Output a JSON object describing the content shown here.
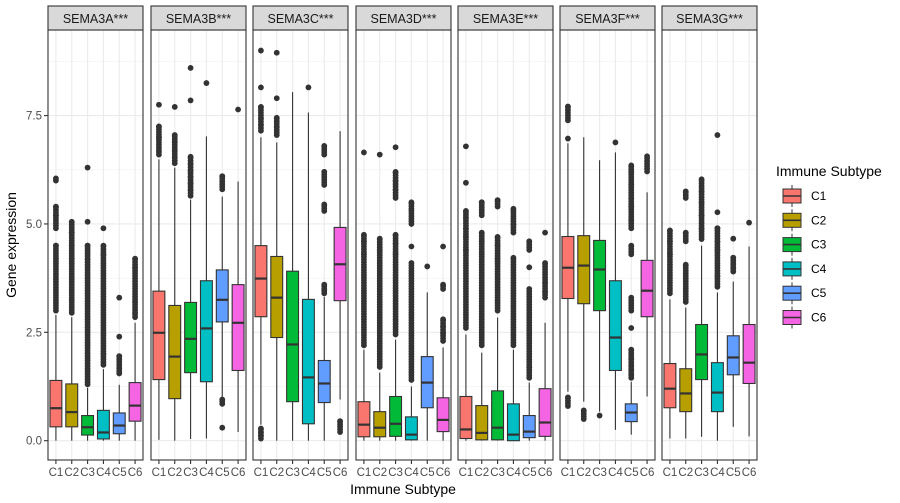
{
  "chart_data": {
    "type": "box",
    "xlabel": "Immune Subtype",
    "ylabel": "Gene expression",
    "ylim": [
      -0.45,
      9.47
    ],
    "yticks": [
      0.0,
      2.5,
      5.0,
      7.5
    ],
    "ytick_labels": [
      "0.0",
      "2.5",
      "5.0",
      "7.5"
    ],
    "grid": true,
    "legend": {
      "title": "Immune Subtype",
      "position": "right",
      "entries": [
        "C1",
        "C2",
        "C3",
        "C4",
        "C5",
        "C6"
      ]
    },
    "categories": [
      "C1",
      "C2",
      "C3",
      "C4",
      "C5",
      "C6"
    ],
    "colors": {
      "C1": "#F8766D",
      "C2": "#B79F00",
      "C3": "#00BA38",
      "C4": "#00BFC4",
      "C5": "#619CFF",
      "C6": "#F564E3"
    },
    "facets": [
      {
        "label": "SEMA3A***",
        "boxes": [
          {
            "group": "C1",
            "low": 0.0,
            "q1": 0.32,
            "median": 0.75,
            "q3": 1.39,
            "high": 2.9,
            "outliers": [
              3.0,
              3.3,
              3.6,
              3.9,
              4.2,
              4.5,
              4.9,
              5.2,
              5.4,
              6.0,
              6.05
            ]
          },
          {
            "group": "C2",
            "low": 0.0,
            "q1": 0.32,
            "median": 0.66,
            "q3": 1.31,
            "high": 2.85,
            "outliers": [
              2.95,
              3.3,
              3.6,
              3.9,
              4.2,
              4.5,
              4.8,
              5.05
            ]
          },
          {
            "group": "C3",
            "low": 0.0,
            "q1": 0.13,
            "median": 0.31,
            "q3": 0.58,
            "high": 1.22,
            "outliers": [
              1.3,
              1.6,
              1.9,
              2.2,
              2.5,
              2.8,
              3.1,
              3.4,
              3.7,
              4.0,
              4.2,
              4.5,
              5.05,
              6.3
            ]
          },
          {
            "group": "C4",
            "low": 0.0,
            "q1": 0.04,
            "median": 0.19,
            "q3": 0.7,
            "high": 1.65,
            "outliers": [
              1.75,
              2.0,
              2.3,
              2.6,
              2.9,
              3.2,
              3.5,
              3.8,
              4.1,
              4.3,
              4.5,
              4.9
            ]
          },
          {
            "group": "C5",
            "low": 0.0,
            "q1": 0.16,
            "median": 0.35,
            "q3": 0.64,
            "high": 1.29,
            "outliers": [
              1.55,
              1.6,
              1.7,
              1.95,
              2.4,
              3.3
            ]
          },
          {
            "group": "C6",
            "low": 0.0,
            "q1": 0.45,
            "median": 0.81,
            "q3": 1.34,
            "high": 2.72,
            "outliers": [
              2.85,
              2.95,
              3.2,
              3.5,
              3.8,
              4.0,
              4.2
            ]
          }
        ]
      },
      {
        "label": "SEMA3B***",
        "boxes": [
          {
            "group": "C1",
            "low": 0.02,
            "q1": 1.41,
            "median": 2.49,
            "q3": 3.45,
            "high": 6.49,
            "outliers": [
              6.6,
              6.7,
              7.0,
              7.25,
              7.75
            ]
          },
          {
            "group": "C2",
            "low": 0.0,
            "q1": 0.97,
            "median": 1.94,
            "q3": 3.12,
            "high": 6.3,
            "outliers": [
              6.4,
              6.55,
              6.7,
              6.9,
              7.05,
              7.7
            ]
          },
          {
            "group": "C3",
            "low": 0.04,
            "q1": 1.57,
            "median": 2.35,
            "q3": 3.19,
            "high": 5.56,
            "outliers": [
              5.65,
              5.8,
              5.95,
              6.1,
              6.25,
              6.4,
              6.55,
              7.85,
              8.6
            ]
          },
          {
            "group": "C4",
            "low": 0.05,
            "q1": 1.36,
            "median": 2.59,
            "q3": 3.69,
            "high": 7.02,
            "outliers": [
              8.25
            ]
          },
          {
            "group": "C5",
            "low": 1.0,
            "q1": 2.74,
            "median": 3.25,
            "q3": 3.94,
            "high": 5.63,
            "outliers": [
              0.3,
              0.85,
              0.95,
              5.8,
              6.1
            ]
          },
          {
            "group": "C6",
            "low": 0.2,
            "q1": 1.62,
            "median": 2.72,
            "q3": 3.6,
            "high": 5.98,
            "outliers": [
              7.64
            ]
          }
        ]
      },
      {
        "label": "SEMA3C***",
        "boxes": [
          {
            "group": "C1",
            "low": 0.37,
            "q1": 2.86,
            "median": 3.74,
            "q3": 4.5,
            "high": 7.0,
            "outliers": [
              0.05,
              0.12,
              0.2,
              0.28,
              7.15,
              7.3,
              7.45,
              7.7,
              8.15,
              9.0
            ]
          },
          {
            "group": "C2",
            "low": 0.0,
            "q1": 2.38,
            "median": 3.3,
            "q3": 4.25,
            "high": 6.88,
            "outliers": [
              7.05,
              7.25,
              7.45,
              7.9,
              8.95
            ]
          },
          {
            "group": "C3",
            "low": 0.0,
            "q1": 0.9,
            "median": 2.22,
            "q3": 3.91,
            "high": 8.04,
            "outliers": []
          },
          {
            "group": "C4",
            "low": 0.0,
            "q1": 0.39,
            "median": 1.46,
            "q3": 3.26,
            "high": 7.57,
            "outliers": [
              8.15
            ]
          },
          {
            "group": "C5",
            "low": 0.0,
            "q1": 0.88,
            "median": 1.32,
            "q3": 1.85,
            "high": 3.32,
            "outliers": [
              3.4,
              3.5,
              3.6,
              5.3,
              5.45,
              5.9,
              6.2,
              6.6,
              6.8
            ]
          },
          {
            "group": "C6",
            "low": 0.95,
            "q1": 3.23,
            "median": 4.07,
            "q3": 4.92,
            "high": 7.14,
            "outliers": [
              0.2,
              0.45
            ]
          }
        ]
      },
      {
        "label": "SEMA3D***",
        "boxes": [
          {
            "group": "C1",
            "low": 0.0,
            "q1": 0.09,
            "median": 0.37,
            "q3": 0.9,
            "high": 2.1,
            "outliers": [
              2.2,
              2.5,
              2.8,
              3.1,
              3.4,
              3.7,
              4.0,
              4.3,
              4.6,
              4.75,
              6.65
            ]
          },
          {
            "group": "C2",
            "low": 0.0,
            "q1": 0.09,
            "median": 0.3,
            "q3": 0.67,
            "high": 1.57,
            "outliers": [
              1.7,
              2.0,
              2.3,
              2.6,
              2.9,
              3.2,
              3.5,
              3.8,
              4.1,
              4.4,
              4.66,
              6.6
            ]
          },
          {
            "group": "C3",
            "low": 0.0,
            "q1": 0.1,
            "median": 0.39,
            "q3": 1.02,
            "high": 2.33,
            "outliers": [
              2.45,
              2.8,
              3.1,
              3.4,
              3.7,
              4.0,
              4.3,
              4.55,
              4.75,
              5.6,
              5.8,
              6.0,
              6.2,
              6.77
            ]
          },
          {
            "group": "C4",
            "low": 0.0,
            "q1": 0.02,
            "median": 0.14,
            "q3": 0.55,
            "high": 1.25,
            "outliers": [
              1.4,
              1.7,
              2.0,
              2.3,
              2.6,
              2.9,
              3.2,
              3.5,
              3.8,
              4.1,
              4.48,
              5.0,
              5.35,
              5.5
            ]
          },
          {
            "group": "C5",
            "low": 0.0,
            "q1": 0.76,
            "median": 1.34,
            "q3": 1.94,
            "high": 3.42,
            "outliers": [
              4.02
            ]
          },
          {
            "group": "C6",
            "low": 0.0,
            "q1": 0.21,
            "median": 0.48,
            "q3": 0.99,
            "high": 2.15,
            "outliers": [
              2.3,
              2.5,
              2.65,
              2.8,
              3.5,
              3.6,
              4.48
            ]
          }
        ]
      },
      {
        "label": "SEMA3E***",
        "boxes": [
          {
            "group": "C1",
            "low": 0.0,
            "q1": 0.05,
            "median": 0.26,
            "q3": 1.02,
            "high": 2.45,
            "outliers": [
              2.6,
              2.9,
              3.2,
              3.5,
              3.8,
              4.1,
              4.4,
              4.7,
              4.9,
              5.15,
              5.3,
              5.95,
              6.79
            ]
          },
          {
            "group": "C2",
            "low": 0.0,
            "q1": 0.02,
            "median": 0.18,
            "q3": 0.81,
            "high": 2.03,
            "outliers": [
              2.2,
              2.5,
              2.8,
              3.1,
              3.4,
              3.7,
              4.0,
              4.3,
              4.6,
              4.8,
              5.2,
              5.5
            ]
          },
          {
            "group": "C3",
            "low": 0.0,
            "q1": 0.02,
            "median": 0.3,
            "q3": 1.15,
            "high": 2.84,
            "outliers": [
              3.0,
              3.3,
              3.6,
              3.9,
              4.2,
              4.5,
              4.7,
              5.4,
              5.55
            ]
          },
          {
            "group": "C4",
            "low": 0.0,
            "q1": 0.0,
            "median": 0.14,
            "q3": 0.85,
            "high": 2.1,
            "outliers": [
              2.2,
              2.5,
              2.8,
              3.1,
              3.4,
              3.7,
              4.0,
              4.22,
              4.8,
              5.0,
              5.35
            ]
          },
          {
            "group": "C5",
            "low": 0.0,
            "q1": 0.07,
            "median": 0.21,
            "q3": 0.58,
            "high": 1.34,
            "outliers": [
              1.45,
              1.7,
              2.0,
              2.3,
              2.6,
              2.9,
              3.2,
              3.5,
              4.0,
              4.4,
              4.6
            ]
          },
          {
            "group": "C6",
            "low": 0.0,
            "q1": 0.1,
            "median": 0.42,
            "q3": 1.2,
            "high": 2.72,
            "outliers": [
              3.3,
              3.45,
              3.65,
              3.95,
              4.1,
              4.8
            ]
          }
        ]
      },
      {
        "label": "SEMA3F***",
        "boxes": [
          {
            "group": "C1",
            "low": 1.13,
            "q1": 3.28,
            "median": 3.99,
            "q3": 4.71,
            "high": 6.86,
            "outliers": [
              0.8,
              1.0,
              6.97,
              7.39,
              7.71
            ]
          },
          {
            "group": "C2",
            "low": 0.9,
            "q1": 3.16,
            "median": 4.04,
            "q3": 4.73,
            "high": 7.0,
            "outliers": [
              0.5,
              0.7
            ]
          },
          {
            "group": "C3",
            "low": 0.67,
            "q1": 3.0,
            "median": 3.95,
            "q3": 4.62,
            "high": 6.47,
            "outliers": [
              0.58
            ]
          },
          {
            "group": "C4",
            "low": 0.25,
            "q1": 1.62,
            "median": 2.38,
            "q3": 3.69,
            "high": 6.65,
            "outliers": [
              6.88
            ]
          },
          {
            "group": "C5",
            "low": 0.14,
            "q1": 0.44,
            "median": 0.65,
            "q3": 0.85,
            "high": 1.36,
            "outliers": [
              1.45,
              1.55,
              1.65,
              1.75,
              1.9,
              2.1,
              2.6,
              3.0,
              3.3,
              4.3,
              4.5,
              4.9,
              5.1,
              5.4,
              5.6,
              5.9,
              6.2,
              6.35
            ]
          },
          {
            "group": "C6",
            "low": 1.02,
            "q1": 2.86,
            "median": 3.46,
            "q3": 4.16,
            "high": 5.73,
            "outliers": [
              6.21,
              6.56
            ]
          }
        ]
      },
      {
        "label": "SEMA3G***",
        "boxes": [
          {
            "group": "C1",
            "low": 0.05,
            "q1": 0.76,
            "median": 1.2,
            "q3": 1.78,
            "high": 3.26,
            "outliers": [
              3.4,
              3.7,
              4.0,
              4.3,
              4.6,
              4.85
            ]
          },
          {
            "group": "C2",
            "low": 0.05,
            "q1": 0.67,
            "median": 1.09,
            "q3": 1.66,
            "high": 3.07,
            "outliers": [
              3.2,
              3.5,
              3.8,
              4.06,
              4.6,
              4.8,
              5.6,
              5.75
            ]
          },
          {
            "group": "C3",
            "low": 0.09,
            "q1": 1.41,
            "median": 1.99,
            "q3": 2.68,
            "high": 4.5,
            "outliers": [
              4.65,
              4.9,
              5.2,
              5.5,
              5.75,
              6.03
            ]
          },
          {
            "group": "C4",
            "low": 0.0,
            "q1": 0.67,
            "median": 1.11,
            "q3": 1.8,
            "high": 3.42,
            "outliers": [
              3.55,
              3.8,
              4.1,
              4.4,
              4.6,
              4.9,
              5.27,
              7.05
            ]
          },
          {
            "group": "C5",
            "low": 0.32,
            "q1": 1.52,
            "median": 1.92,
            "q3": 2.42,
            "high": 3.67,
            "outliers": [
              3.9,
              4.0,
              4.1,
              4.22,
              4.66
            ]
          },
          {
            "group": "C6",
            "low": 0.1,
            "q1": 1.32,
            "median": 1.8,
            "q3": 2.68,
            "high": 4.48,
            "outliers": [
              5.03
            ]
          }
        ]
      }
    ]
  }
}
